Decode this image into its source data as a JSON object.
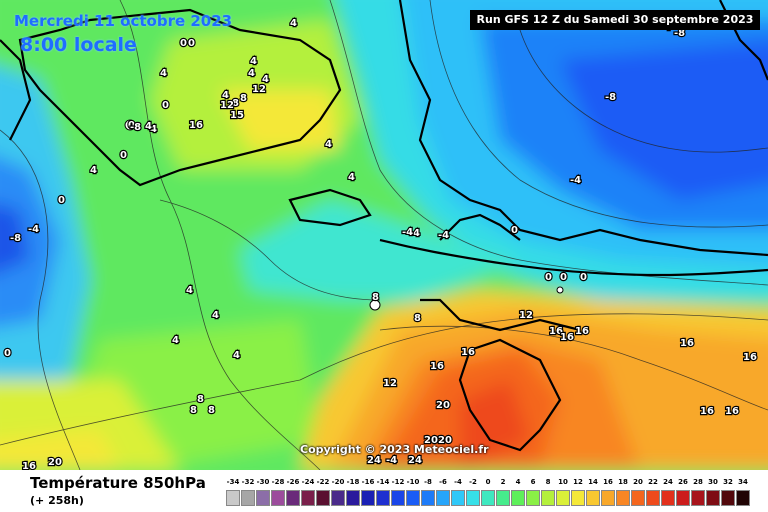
{
  "header": {
    "date_line": "Mercredi 11 octobre 2023",
    "time_line": "8:00 locale",
    "run_info": "Run GFS 12 Z du Samedi 30 septembre 2023"
  },
  "copyright": "Copyright © 2023 Meteociel.fr",
  "footer": {
    "title": "Température 850hPa",
    "subtitle": "(+ 258h)"
  },
  "legend": {
    "values": [
      "-34",
      "-32",
      "-30",
      "-28",
      "-26",
      "-24",
      "-22",
      "-20",
      "-18",
      "-16",
      "-14",
      "-12",
      "-10",
      "-8",
      "-6",
      "-4",
      "-2",
      "0",
      "2",
      "4",
      "6",
      "8",
      "10",
      "12",
      "14",
      "16",
      "18",
      "20",
      "22",
      "24",
      "26",
      "28",
      "30",
      "32",
      "34"
    ],
    "colors": [
      "#c9c9c9",
      "#a6a6a6",
      "#8c6ea8",
      "#9c4c9c",
      "#6a2a7a",
      "#7a1f4a",
      "#5a1030",
      "#4a2a8a",
      "#2a1a9c",
      "#1a20b4",
      "#1e2fd0",
      "#1a45e8",
      "#1a5cf5",
      "#1e7bf8",
      "#26a5fa",
      "#2fc8f8",
      "#36e0e8",
      "#3ee8c0",
      "#46ec8c",
      "#5ef05a",
      "#8af046",
      "#b4f03c",
      "#daf038",
      "#f4e838",
      "#f8c830",
      "#f8a82a",
      "#f88624",
      "#f4661e",
      "#ee4a1c",
      "#e2301c",
      "#cc1c1c",
      "#a8141c",
      "#7e0c14",
      "#52080c",
      "#200404"
    ]
  },
  "map": {
    "isotherm_labels": [
      "4",
      "4",
      "4",
      "4",
      "4",
      "4",
      "4",
      "4",
      "4",
      "4",
      "4",
      "4",
      "4",
      "4",
      "4",
      "4",
      "0",
      "0",
      "0",
      "0",
      "0",
      "0",
      "0",
      "0",
      "0",
      "0",
      "0",
      "8",
      "8",
      "8",
      "8",
      "8",
      "8",
      "8",
      "12",
      "12",
      "12",
      "12",
      "15",
      "16",
      "16",
      "16",
      "16",
      "16",
      "16",
      "16",
      "16",
      "16",
      "16",
      "16",
      "20",
      "20",
      "20",
      "20",
      "24",
      "24",
      "-4",
      "-4",
      "-4",
      "-4",
      "-4",
      "-4",
      "-8",
      "-8",
      "-8",
      "-8"
    ]
  }
}
